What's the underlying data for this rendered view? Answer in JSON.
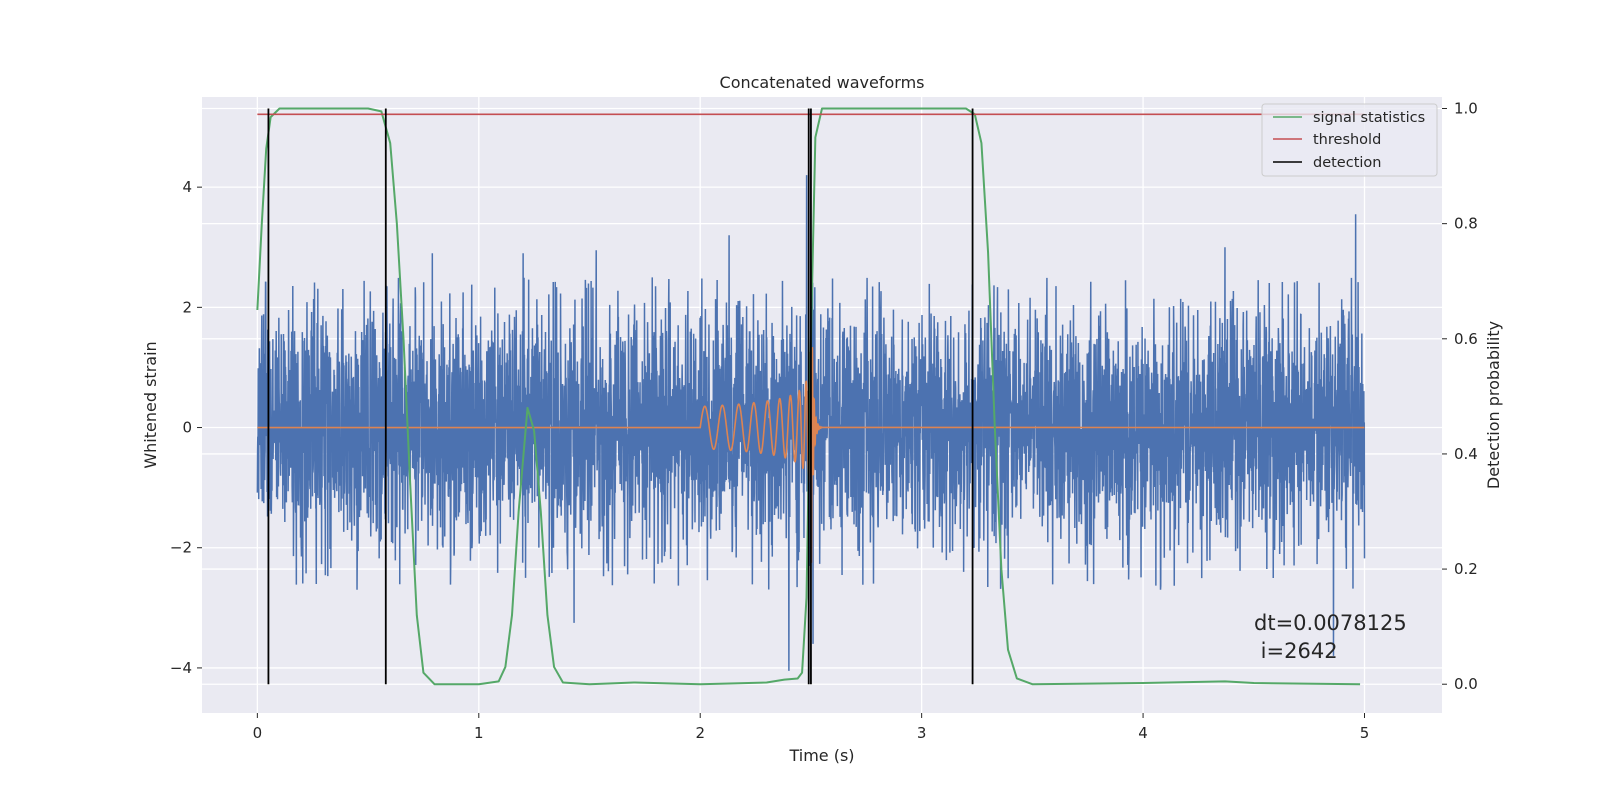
{
  "chart_data": {
    "type": "line",
    "title": "Concatenated waveforms",
    "xlabel": "Time (s)",
    "ylabel": "Whitened strain",
    "y2label": "Detection probability",
    "xlim": [
      -0.25,
      5.35
    ],
    "ylim": [
      -4.75,
      5.5
    ],
    "y2lim": [
      -0.05,
      1.02
    ],
    "x_ticks": [
      0,
      1,
      2,
      3,
      4,
      5
    ],
    "y_ticks": [
      -4,
      -2,
      0,
      2,
      4
    ],
    "y2_ticks": [
      0.0,
      0.2,
      0.4,
      0.6,
      0.8,
      1.0
    ],
    "x_tick_labels": [
      "0",
      "1",
      "2",
      "3",
      "4",
      "5"
    ],
    "y_tick_labels": [
      "−4",
      "−2",
      "0",
      "2",
      "4"
    ],
    "y2_tick_labels": [
      "0.0",
      "0.2",
      "0.4",
      "0.6",
      "0.8",
      "1.0"
    ],
    "grid": true,
    "legend_position": "top-right",
    "colors": {
      "background": "#eaeaf2",
      "grid": "#ffffff",
      "strain": "#4c72b0",
      "template": "#dd8452",
      "signal_statistics": "#55a868",
      "threshold": "#c44e52",
      "detection": "#000000"
    },
    "series": [
      {
        "name": "",
        "axis": "left",
        "kind": "noise",
        "x_range": [
          0,
          5
        ],
        "samples": 5000,
        "noise_std": 1.0,
        "envelope_max": 2.5,
        "envelope_min": -2.7,
        "peaks": [
          [
            2.48,
            4.2
          ],
          [
            4.96,
            3.55
          ],
          [
            2.13,
            3.2
          ],
          [
            0.79,
            2.9
          ],
          [
            1.2,
            2.9
          ],
          [
            1.53,
            2.95
          ],
          [
            2.51,
            -3.6
          ],
          [
            2.4,
            -4.05
          ],
          [
            1.43,
            -3.25
          ],
          [
            4.86,
            -3.8
          ],
          [
            0.45,
            -2.7
          ],
          [
            4.37,
            3.0
          ]
        ]
      },
      {
        "name": "",
        "axis": "left",
        "kind": "chirp",
        "x_range": [
          2.0,
          2.55
        ],
        "merger_time": 2.5,
        "amplitude_start": 0.35,
        "amplitude_peak": 3.0,
        "frequency_start_hz": 12,
        "frequency_peak_hz": 120
      },
      {
        "name": "signal statistics",
        "axis": "right",
        "points": [
          [
            0.0,
            0.65
          ],
          [
            0.02,
            0.8
          ],
          [
            0.04,
            0.93
          ],
          [
            0.06,
            0.985
          ],
          [
            0.1,
            1.0
          ],
          [
            0.5,
            1.0
          ],
          [
            0.56,
            0.995
          ],
          [
            0.6,
            0.94
          ],
          [
            0.63,
            0.8
          ],
          [
            0.66,
            0.6
          ],
          [
            0.69,
            0.35
          ],
          [
            0.72,
            0.12
          ],
          [
            0.75,
            0.02
          ],
          [
            0.8,
            0.0
          ],
          [
            1.0,
            0.0
          ],
          [
            1.09,
            0.005
          ],
          [
            1.12,
            0.03
          ],
          [
            1.15,
            0.12
          ],
          [
            1.18,
            0.3
          ],
          [
            1.22,
            0.48
          ],
          [
            1.25,
            0.44
          ],
          [
            1.28,
            0.3
          ],
          [
            1.31,
            0.12
          ],
          [
            1.34,
            0.03
          ],
          [
            1.38,
            0.003
          ],
          [
            1.5,
            0.0
          ],
          [
            1.7,
            0.003
          ],
          [
            2.0,
            0.0
          ],
          [
            2.3,
            0.003
          ],
          [
            2.38,
            0.008
          ],
          [
            2.44,
            0.01
          ],
          [
            2.46,
            0.02
          ],
          [
            2.48,
            0.15
          ],
          [
            2.5,
            0.6
          ],
          [
            2.52,
            0.95
          ],
          [
            2.55,
            1.0
          ],
          [
            3.2,
            1.0
          ],
          [
            3.24,
            0.99
          ],
          [
            3.27,
            0.94
          ],
          [
            3.3,
            0.75
          ],
          [
            3.33,
            0.45
          ],
          [
            3.36,
            0.2
          ],
          [
            3.39,
            0.06
          ],
          [
            3.43,
            0.01
          ],
          [
            3.5,
            0.0
          ],
          [
            4.0,
            0.002
          ],
          [
            4.37,
            0.005
          ],
          [
            4.5,
            0.002
          ],
          [
            4.98,
            0.0
          ]
        ]
      },
      {
        "name": "threshold",
        "axis": "right",
        "points": [
          [
            0.0,
            0.99
          ],
          [
            5.0,
            0.99
          ]
        ]
      },
      {
        "name": "detection",
        "axis": "right",
        "vertical_lines_x": [
          0.05,
          0.58,
          2.49,
          2.5,
          3.23
        ],
        "y_range": [
          0.0,
          1.0
        ]
      }
    ],
    "annotations": [
      {
        "text": "dt=0.0078125",
        "x": 4.5,
        "y": -3.25
      },
      {
        "text": " i=2642",
        "x": 4.5,
        "y": -3.72
      }
    ]
  }
}
